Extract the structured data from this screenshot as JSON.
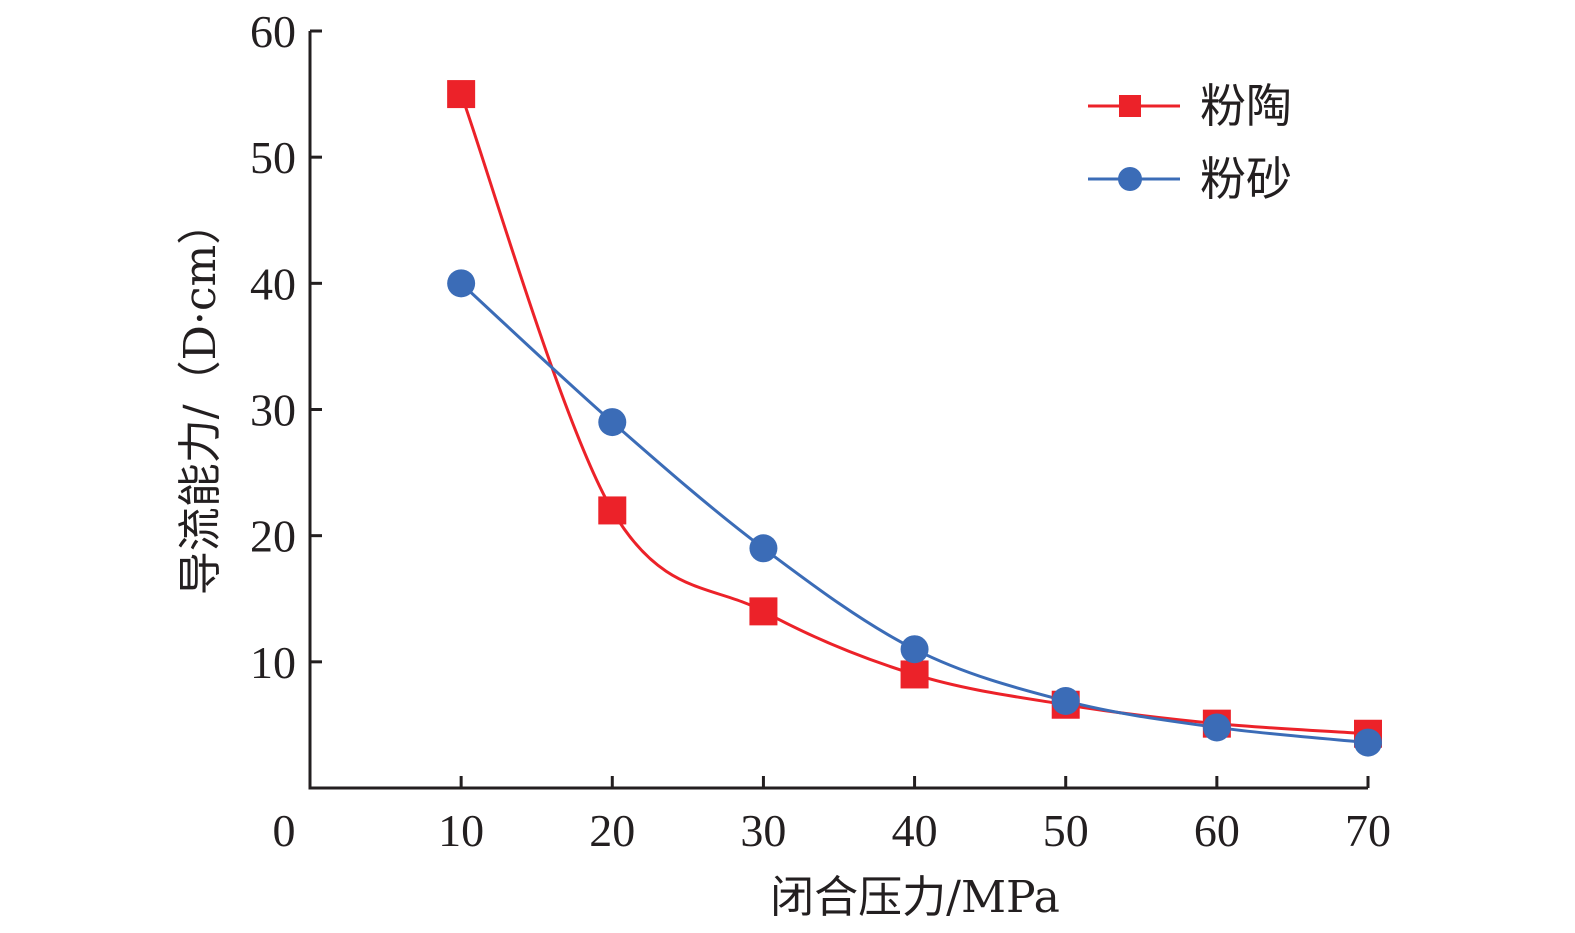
{
  "chart_data": {
    "type": "line",
    "title": "",
    "xlabel": "闭合压力/MPa",
    "ylabel": "导流能力/（D·cm）",
    "xlim": [
      0,
      70
    ],
    "ylim": [
      0,
      60
    ],
    "x_ticks": [
      "0",
      "10",
      "20",
      "30",
      "40",
      "50",
      "60",
      "70"
    ],
    "y_ticks": [
      "10",
      "20",
      "30",
      "40",
      "50",
      "60"
    ],
    "grid": false,
    "legend_position": "top-right",
    "x": [
      10,
      20,
      30,
      40,
      50,
      60,
      70
    ],
    "series": [
      {
        "name": "粉陶",
        "marker": "square",
        "color": "#ec2229",
        "values": [
          55,
          22,
          14,
          9,
          6.6,
          5.1,
          4.3
        ]
      },
      {
        "name": "粉砂",
        "marker": "circle",
        "color": "#3b6cb7",
        "values": [
          40,
          29,
          19,
          11,
          6.9,
          4.8,
          3.6
        ]
      }
    ]
  }
}
